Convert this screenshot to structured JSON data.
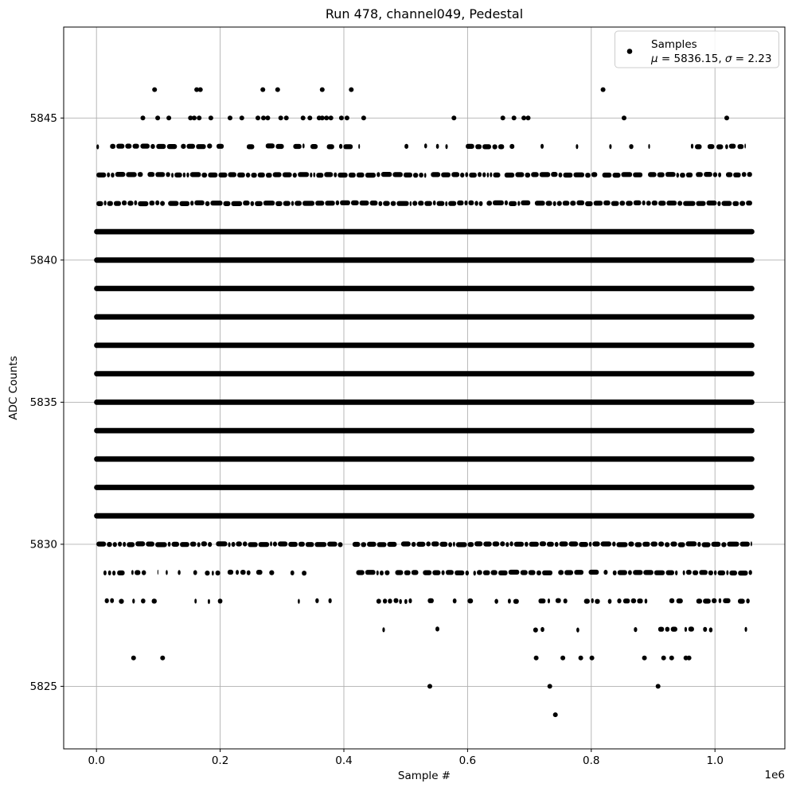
{
  "figure": {
    "background": "#ffffff"
  },
  "chart_data": {
    "type": "scatter",
    "title": "Run 478, channel049, Pedestal",
    "xlabel": "Sample #",
    "ylabel": "ADC Counts",
    "x_offset_label": "1e6",
    "mu": 5836.15,
    "sigma": 2.23,
    "legend": {
      "position": "upper right",
      "marker": "dot",
      "lines": [
        "Samples",
        "μ = 5836.15, σ = 2.23"
      ]
    },
    "xlim": [
      -53000,
      1113000
    ],
    "ylim": [
      5822.8,
      5848.2
    ],
    "x_ticks": [
      0,
      200000,
      400000,
      600000,
      800000,
      1000000
    ],
    "x_tick_labels": [
      "0.0",
      "0.2",
      "0.4",
      "0.6",
      "0.8",
      "1.0"
    ],
    "y_ticks": [
      5825,
      5830,
      5835,
      5840,
      5845
    ],
    "y_tick_labels": [
      "5825",
      "5830",
      "5835",
      "5840",
      "5845"
    ],
    "grid": true,
    "x_data_range": [
      0,
      1060000
    ],
    "colors": {
      "marker": "#000000",
      "grid": "#b0b0b0",
      "spine": "#000000",
      "legend_border": "#cccccc",
      "legend_bg": "rgba(255,255,255,0.85)"
    },
    "seed": 7,
    "rows": [
      {
        "adc": 5846,
        "points": [
          94000,
          162000,
          168000,
          269000,
          293000,
          365000,
          412000,
          819000
        ]
      },
      {
        "adc": 5845,
        "points": [
          75000,
          99000,
          117000,
          152000,
          158000,
          166000,
          185000,
          216000,
          235000,
          261000,
          270000,
          277000,
          298000,
          307000,
          334000,
          345000,
          360000,
          365000,
          372000,
          379000,
          396000,
          405000,
          432000,
          578000,
          657000,
          675000,
          691000,
          698000,
          853000,
          1019000
        ]
      },
      {
        "adc": 5844,
        "segments": [
          [
            0,
            4000,
            0.7
          ],
          [
            22000,
            208000,
            0.8
          ],
          [
            224000,
            236000,
            0.6
          ],
          [
            243000,
            426000,
            0.82
          ],
          [
            429000,
            437000,
            0.35
          ],
          [
            455000,
            459000,
            0.5
          ],
          [
            470000,
            478000,
            0.4
          ],
          [
            492000,
            505000,
            0.4
          ],
          [
            530000,
            538000,
            0.45
          ],
          [
            549000,
            568000,
            0.5
          ],
          [
            597000,
            687000,
            0.78
          ],
          [
            690000,
            703000,
            0.4
          ],
          [
            708000,
            713000,
            0.4
          ],
          [
            718000,
            723000,
            0.4
          ],
          [
            741000,
            746000,
            0.4
          ],
          [
            775000,
            780000,
            0.4
          ],
          [
            822000,
            895000,
            0.55
          ],
          [
            928000,
            1050000,
            0.5
          ]
        ]
      },
      {
        "adc": 5843,
        "segments": [
          [
            0,
            1060000,
            0.93
          ]
        ]
      },
      {
        "adc": 5842,
        "segments": [
          [
            0,
            1060000,
            0.985
          ]
        ]
      },
      {
        "adc": 5841,
        "solid": [
          0,
          1060000
        ]
      },
      {
        "adc": 5840,
        "solid": [
          0,
          1060000
        ]
      },
      {
        "adc": 5839,
        "solid": [
          0,
          1060000
        ]
      },
      {
        "adc": 5838,
        "solid": [
          0,
          1060000
        ]
      },
      {
        "adc": 5837,
        "solid": [
          0,
          1060000
        ]
      },
      {
        "adc": 5836,
        "solid": [
          0,
          1060000
        ]
      },
      {
        "adc": 5835,
        "solid": [
          0,
          1060000
        ]
      },
      {
        "adc": 5834,
        "solid": [
          0,
          1060000
        ]
      },
      {
        "adc": 5833,
        "solid": [
          0,
          1060000
        ]
      },
      {
        "adc": 5832,
        "solid": [
          0,
          1060000
        ]
      },
      {
        "adc": 5831,
        "solid": [
          0,
          1060000
        ]
      },
      {
        "adc": 5830,
        "segments": [
          [
            0,
            398000,
            0.96
          ],
          [
            414000,
            1060000,
            0.97
          ]
        ]
      },
      {
        "adc": 5829,
        "segments": [
          [
            5000,
            100000,
            0.7
          ],
          [
            112000,
            200000,
            0.52
          ],
          [
            212000,
            292000,
            0.48
          ],
          [
            300000,
            418000,
            0.36
          ],
          [
            420000,
            1060000,
            0.88
          ]
        ]
      },
      {
        "adc": 5828,
        "segments": [
          [
            0,
            62000,
            0.5
          ],
          [
            72000,
            162000,
            0.3
          ],
          [
            180000,
            212000,
            0.32
          ],
          [
            228000,
            262000,
            0.3
          ],
          [
            280000,
            420000,
            0.15
          ],
          [
            432000,
            560000,
            0.45
          ],
          [
            572000,
            700000,
            0.38
          ],
          [
            706000,
            896000,
            0.5
          ],
          [
            904000,
            1060000,
            0.55
          ]
        ]
      },
      {
        "adc": 5827,
        "segments": [
          [
            30000,
            90000,
            0.14
          ],
          [
            112000,
            132000,
            0.12
          ],
          [
            168000,
            182000,
            0.1
          ],
          [
            232000,
            302000,
            0.13
          ],
          [
            398000,
            470000,
            0.2
          ],
          [
            488000,
            582000,
            0.25
          ],
          [
            618000,
            662000,
            0.18
          ],
          [
            668000,
            732000,
            0.3
          ],
          [
            758000,
            822000,
            0.28
          ],
          [
            838000,
            882000,
            0.22
          ],
          [
            900000,
            996000,
            0.6
          ],
          [
            1048000,
            1058000,
            0.15
          ]
        ]
      },
      {
        "adc": 5826,
        "points": [
          60000,
          107000,
          711000,
          754000,
          783000,
          801000,
          886000,
          917000,
          930000,
          953000,
          958000
        ]
      },
      {
        "adc": 5825,
        "points": [
          539000,
          733000,
          908000
        ]
      },
      {
        "adc": 5824,
        "points": [
          742000
        ]
      }
    ]
  }
}
